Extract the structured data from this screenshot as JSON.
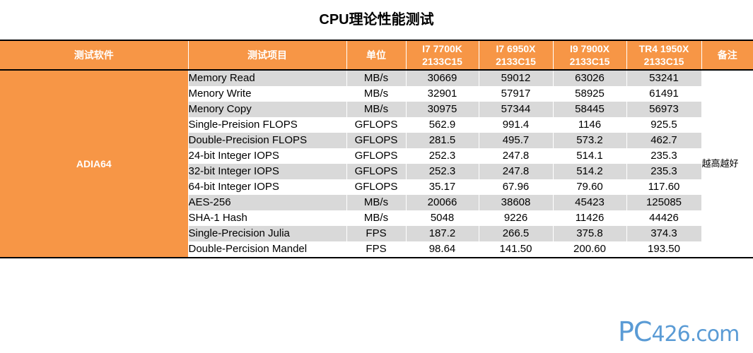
{
  "title": "CPU理论性能测试",
  "chart_data": {
    "type": "table",
    "title": "CPU理论性能测试",
    "columns": [
      "测试软件",
      "测试项目",
      "单位",
      "I7 7700K 2133C15",
      "I7 6950X 2133C15",
      "I9 7900X 2133C15",
      "TR4 1950X 2133C15",
      "备注"
    ],
    "header": {
      "software": "测试软件",
      "item": "测试项目",
      "unit": "单位",
      "cpus": [
        {
          "name": "I7 7700K",
          "mem": "2133C15"
        },
        {
          "name": "I7 6950X",
          "mem": "2133C15"
        },
        {
          "name": "I9 7900X",
          "mem": "2133C15"
        },
        {
          "name": "TR4 1950X",
          "mem": "2133C15"
        }
      ],
      "remark": "备注"
    },
    "software": "ADIA64",
    "remark": "越高越好",
    "rows": [
      {
        "item": "Memory Read",
        "unit": "MB/s",
        "values": [
          "30669",
          "59012",
          "63026",
          "53241"
        ]
      },
      {
        "item": "Menory Write",
        "unit": "MB/s",
        "values": [
          "32901",
          "57917",
          "58925",
          "61491"
        ]
      },
      {
        "item": "Menory Copy",
        "unit": "MB/s",
        "values": [
          "30975",
          "57344",
          "58445",
          "56973"
        ]
      },
      {
        "item": "Single-Preision FLOPS",
        "unit": "GFLOPS",
        "values": [
          "562.9",
          "991.4",
          "1146",
          "925.5"
        ]
      },
      {
        "item": "Double-Precision FLOPS",
        "unit": "GFLOPS",
        "values": [
          "281.5",
          "495.7",
          "573.2",
          "462.7"
        ]
      },
      {
        "item": "24-bit Integer IOPS",
        "unit": "GFLOPS",
        "values": [
          "252.3",
          "247.8",
          "514.1",
          "235.3"
        ]
      },
      {
        "item": "32-bit Integer IOPS",
        "unit": "GFLOPS",
        "values": [
          "252.3",
          "247.8",
          "514.2",
          "235.3"
        ]
      },
      {
        "item": "64-bit Integer IOPS",
        "unit": "GFLOPS",
        "values": [
          "35.17",
          "67.96",
          "79.60",
          "117.60"
        ]
      },
      {
        "item": "AES-256",
        "unit": "MB/s",
        "values": [
          "20066",
          "38608",
          "45423",
          "125085"
        ]
      },
      {
        "item": "SHA-1 Hash",
        "unit": "MB/s",
        "values": [
          "5048",
          "9226",
          "11426",
          "44426"
        ]
      },
      {
        "item": "Single-Precision Julia",
        "unit": "FPS",
        "values": [
          "187.2",
          "266.5",
          "375.8",
          "374.3"
        ]
      },
      {
        "item": "Double-Percision Mandel",
        "unit": "FPS",
        "values": [
          "98.64",
          "141.50",
          "200.60",
          "193.50"
        ]
      }
    ]
  },
  "logo_text": {
    "main": "PC",
    "rest": "426.com"
  },
  "colors": {
    "header_bg": "#f79646",
    "header_text": "#ffffff",
    "stripe": "#d9d9d9",
    "logo": "#5a9bd5"
  }
}
